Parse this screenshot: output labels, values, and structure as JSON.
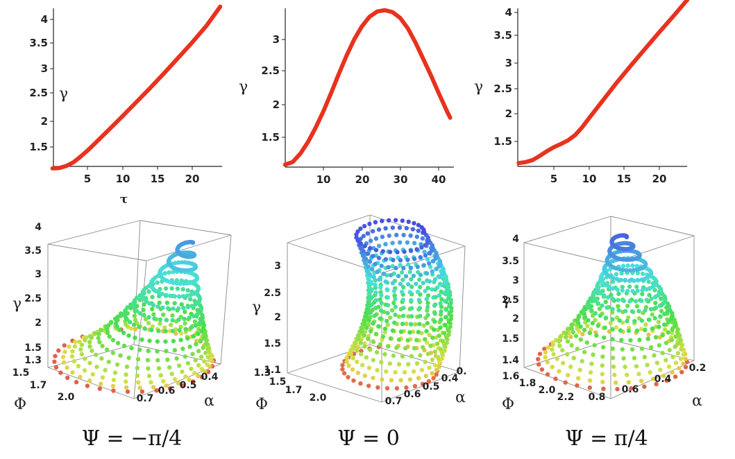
{
  "chart_data": [
    {
      "type": "line",
      "panel": "top-left",
      "xlabel": "τ",
      "ylabel": "γ",
      "xlim": [
        0,
        24
      ],
      "ylim": [
        1.05,
        4.3
      ],
      "xticks": [
        "5",
        "10",
        "15",
        "20"
      ],
      "yticks": [
        "1.5",
        "2",
        "2.5",
        "3",
        "3.5",
        "4"
      ],
      "color": "#e8321e",
      "x": [
        0,
        1,
        2,
        3,
        4,
        5,
        6,
        8,
        10,
        12,
        14,
        16,
        18,
        20,
        22,
        24
      ],
      "y": [
        1.08,
        1.09,
        1.13,
        1.2,
        1.31,
        1.43,
        1.56,
        1.83,
        2.1,
        2.38,
        2.66,
        2.95,
        3.25,
        3.55,
        3.87,
        4.25
      ]
    },
    {
      "type": "line",
      "panel": "top-middle",
      "xlabel": "",
      "ylabel": "γ",
      "xlim": [
        0,
        44
      ],
      "ylim": [
        1.05,
        3.5
      ],
      "xticks": [
        "10",
        "20",
        "30",
        "40"
      ],
      "yticks": [
        "1.5",
        "2",
        "2.5",
        "3"
      ],
      "color": "#e8321e",
      "x": [
        0,
        2,
        4,
        6,
        8,
        10,
        12,
        14,
        16,
        18,
        20,
        22,
        24,
        26,
        28,
        30,
        32,
        34,
        36,
        38,
        40,
        42,
        43
      ],
      "y": [
        1.08,
        1.12,
        1.25,
        1.43,
        1.65,
        1.9,
        2.18,
        2.47,
        2.75,
        3.0,
        3.2,
        3.35,
        3.43,
        3.45,
        3.42,
        3.33,
        3.17,
        2.95,
        2.7,
        2.45,
        2.18,
        1.92,
        1.8
      ]
    },
    {
      "type": "line",
      "panel": "top-right",
      "xlabel": "",
      "ylabel": "γ",
      "xlim": [
        0,
        24
      ],
      "ylim": [
        1.05,
        4.1
      ],
      "xticks": [
        "5",
        "10",
        "15",
        "20"
      ],
      "yticks": [
        "1.5",
        "2",
        "2.5",
        "3",
        "3.5",
        "4"
      ],
      "color": "#e8321e",
      "x": [
        0,
        1,
        2,
        3,
        4,
        5,
        6,
        7,
        8,
        9,
        10,
        12,
        14,
        16,
        18,
        20,
        22,
        24
      ],
      "y": [
        1.08,
        1.1,
        1.14,
        1.22,
        1.31,
        1.39,
        1.45,
        1.52,
        1.62,
        1.77,
        1.95,
        2.3,
        2.65,
        2.98,
        3.3,
        3.62,
        3.93,
        4.25
      ]
    },
    {
      "type": "scatter3d",
      "panel": "bottom-left",
      "zlabel": "γ",
      "xlabel": "Φ",
      "ylabel": "α",
      "zticks": [
        "1.3",
        "1.5",
        "2",
        "2.5",
        "3",
        "3.5",
        "4"
      ],
      "phiticks": [
        "1.5",
        "1.7",
        "2.0"
      ],
      "alphaticks": [
        "0.7",
        "0.6",
        "0.5",
        "0.4"
      ],
      "caption": "Ψ = −π/4"
    },
    {
      "type": "scatter3d",
      "panel": "bottom-middle",
      "zlabel": "γ",
      "xlabel": "Φ",
      "ylabel": "α",
      "zticks": [
        "1.1",
        "1.5",
        "2",
        "2.5",
        "3"
      ],
      "phiticks": [
        "1.3",
        "1.5",
        "1.7",
        "2.0"
      ],
      "alphaticks": [
        "0.7",
        "0.6",
        "0.5",
        "0.4",
        "0."
      ],
      "caption": "Ψ = 0"
    },
    {
      "type": "scatter3d",
      "panel": "bottom-right",
      "zlabel": "γ",
      "xlabel": "Φ",
      "ylabel": "α",
      "zticks": [
        "1.4",
        "1.5",
        "2",
        "2.5",
        "3",
        "3.5",
        "4"
      ],
      "phiticks": [
        "1.6",
        "1.8",
        "2.0",
        "2.2"
      ],
      "alphaticks": [
        "0.8",
        "0.6",
        "0.4",
        "0.2"
      ],
      "caption": "Ψ = π/4"
    }
  ]
}
